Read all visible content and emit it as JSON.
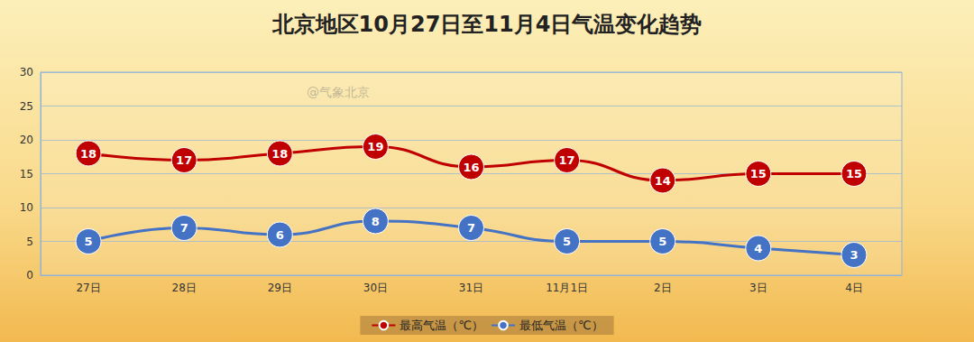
{
  "chart_data": {
    "type": "line",
    "title": "北京地区10月27日至11月4日气温变化趋势",
    "categories": [
      "27日",
      "28日",
      "29日",
      "30日",
      "31日",
      "11月1日",
      "2日",
      "3日",
      "4日"
    ],
    "series": [
      {
        "name": "最高气温（℃）",
        "color": "#c00000",
        "values": [
          18,
          17,
          18,
          19,
          16,
          17,
          14,
          15,
          15
        ]
      },
      {
        "name": "最低气温（℃）",
        "color": "#4472c4",
        "values": [
          5,
          7,
          6,
          8,
          7,
          5,
          5,
          4,
          3
        ]
      }
    ],
    "ylim": [
      0,
      30
    ],
    "yticks": [
      0,
      5,
      10,
      15,
      20,
      25,
      30
    ],
    "grid": true,
    "legend": "bottom",
    "data_labels": true,
    "marker": "circle",
    "annotations": [
      "@气象北京"
    ]
  }
}
